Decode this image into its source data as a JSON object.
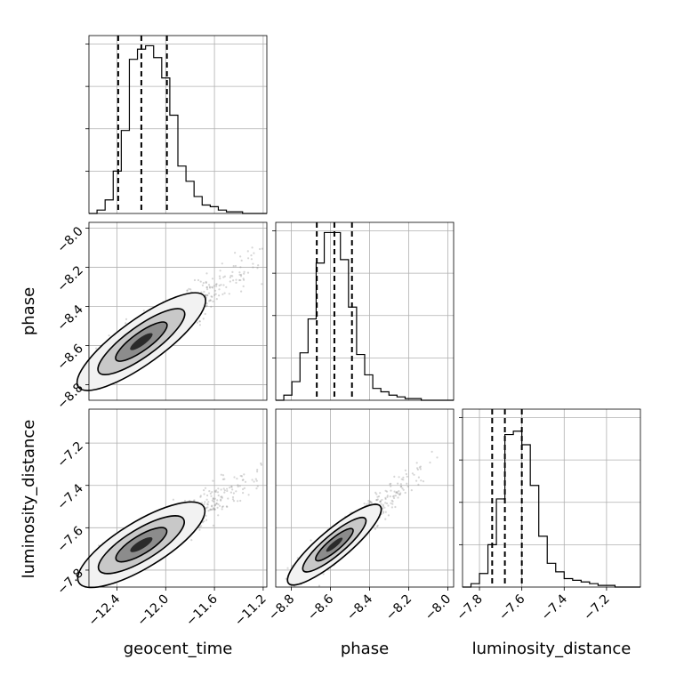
{
  "chart_data": {
    "type": "corner",
    "parameters": [
      "geocent_time",
      "phase",
      "luminosity_distance"
    ],
    "ranges": {
      "geocent_time": [
        -12.63,
        -11.17
      ],
      "phase": [
        -8.88,
        -7.97
      ],
      "luminosity_distance": [
        -7.88,
        -7.04
      ]
    },
    "ticks": {
      "geocent_time": [
        -12.4,
        -12.0,
        -11.6,
        -11.2
      ],
      "phase": [
        -8.8,
        -8.6,
        -8.4,
        -8.2,
        -8.0
      ],
      "luminosity_distance": [
        -7.8,
        -7.6,
        -7.4,
        -7.2
      ]
    },
    "tick_labels": {
      "geocent_time": [
        "−12.4",
        "−12.0",
        "−11.6",
        "−11.2"
      ],
      "phase": [
        "−8.8",
        "−8.6",
        "−8.4",
        "−8.2",
        "−8.0"
      ],
      "luminosity_distance": [
        "−7.8",
        "−7.6",
        "−7.4",
        "−7.2"
      ]
    },
    "quantiles": {
      "geocent_time": [
        -12.39,
        -12.2,
        -11.99
      ],
      "phase": [
        -8.67,
        -8.58,
        -8.49
      ],
      "luminosity_distance": [
        -7.74,
        -7.68,
        -7.6
      ]
    },
    "histograms": {
      "geocent_time": {
        "x": [
          -12.63,
          -12.57,
          -12.5,
          -12.43,
          -12.37,
          -12.3,
          -12.24,
          -12.17,
          -12.1,
          -12.04,
          -11.97,
          -11.91,
          -11.84,
          -11.77,
          -11.71,
          -11.64,
          -11.58,
          -11.51,
          -11.44,
          -11.38,
          -11.31,
          -11.25
        ],
        "counts": [
          0,
          2,
          8,
          25,
          49,
          91,
          97,
          99,
          92,
          80,
          58,
          28,
          19,
          10,
          5,
          4,
          2,
          1,
          1,
          0,
          0,
          0
        ]
      },
      "phase": {
        "x": [
          -8.88,
          -8.84,
          -8.8,
          -8.76,
          -8.72,
          -8.67,
          -8.63,
          -8.59,
          -8.55,
          -8.51,
          -8.47,
          -8.43,
          -8.39,
          -8.35,
          -8.3,
          -8.26,
          -8.22,
          -8.18,
          -8.14,
          -8.1,
          -8.06,
          -8.02
        ],
        "counts": [
          0,
          3,
          11,
          28,
          48,
          81,
          99,
          99,
          83,
          55,
          27,
          15,
          7,
          5,
          3,
          2,
          1,
          1,
          0,
          0,
          0,
          0
        ]
      },
      "luminosity_distance": {
        "x": [
          -7.88,
          -7.84,
          -7.8,
          -7.76,
          -7.72,
          -7.68,
          -7.64,
          -7.6,
          -7.56,
          -7.52,
          -7.48,
          -7.44,
          -7.4,
          -7.36,
          -7.32,
          -7.28,
          -7.24,
          -7.2,
          -7.16,
          -7.12,
          -7.08
        ],
        "counts": [
          0,
          2,
          8,
          25,
          52,
          90,
          92,
          84,
          60,
          30,
          14,
          9,
          5,
          4,
          3,
          2,
          1,
          1,
          0,
          0,
          0
        ]
      }
    },
    "hist_ymax": 105,
    "pairs": [
      {
        "x": "geocent_time",
        "y": "phase",
        "correlation": 0.85
      },
      {
        "x": "geocent_time",
        "y": "luminosity_distance",
        "correlation": 0.82
      },
      {
        "x": "phase",
        "y": "luminosity_distance",
        "correlation": 0.88
      }
    ],
    "grid": true
  }
}
